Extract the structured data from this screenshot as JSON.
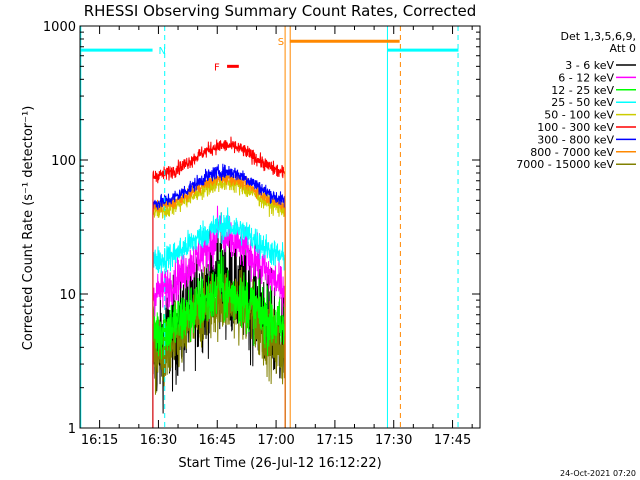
{
  "chart_data": {
    "type": "line",
    "title": "RHESSI Observing Summary Count Rates, Corrected",
    "xlabel": "Start Time (26-Jul-12 16:12:22)",
    "ylabel": "Corrected Count Rate (s⁻¹ detector⁻¹)",
    "timestamp": "24-Oct-2021 07:20",
    "x_range": [
      "16:10",
      "17:52"
    ],
    "x_ticks": [
      "16:15",
      "16:30",
      "16:45",
      "17:00",
      "17:15",
      "17:30",
      "17:45"
    ],
    "x_tick_minutes": [
      975,
      990,
      1005,
      1020,
      1035,
      1050,
      1065
    ],
    "minor_tick_minutes": [
      980,
      985,
      995,
      1000,
      1010,
      1015,
      1025,
      1030,
      1040,
      1045,
      1055,
      1060,
      1070
    ],
    "x_min_minutes": 970,
    "x_max_minutes": 1072,
    "y_scale": "log",
    "ylim": [
      1,
      1000
    ],
    "y_ticks": [
      "1",
      "10",
      "100",
      "1000"
    ],
    "y_tick_values": [
      1,
      10,
      100,
      1000
    ],
    "legend": {
      "placement": "top-right",
      "header": [
        "Det 1,3,5,6,9,",
        "Att 0"
      ]
    },
    "data_window_minutes": [
      988.6,
      1022.3
    ],
    "series": [
      {
        "name": "3 - 6 keV",
        "color": "#000000",
        "start": 3.5,
        "peak": 12,
        "noise": 0.45
      },
      {
        "name": "6 - 12 keV",
        "color": "#ff00ff",
        "start": 9.5,
        "peak": 25,
        "noise": 0.18
      },
      {
        "name": "12 - 25 keV",
        "color": "#00ff00",
        "start": 5,
        "peak": 10,
        "noise": 0.25
      },
      {
        "name": "25 - 50 keV",
        "color": "#00ffff",
        "start": 17,
        "peak": 32,
        "noise": 0.12
      },
      {
        "name": "50 - 100 keV",
        "color": "#cccc00",
        "start": 40,
        "peak": 68,
        "noise": 0.08
      },
      {
        "name": "100 - 300 keV",
        "color": "#ff0000",
        "start": 74,
        "peak": 128,
        "noise": 0.06
      },
      {
        "name": "300 - 800 keV",
        "color": "#0000ff",
        "start": 46,
        "peak": 82,
        "noise": 0.06
      },
      {
        "name": "800 - 7000 keV",
        "color": "#ff8800",
        "start": 43,
        "peak": 73,
        "noise": 0.05
      },
      {
        "name": "7000 - 15000 keV",
        "color": "#808000",
        "start": 3,
        "peak": 9,
        "noise": 0.3
      }
    ],
    "annotations": {
      "night": {
        "label": "N",
        "color": "#00ffff",
        "intervals": [
          [
            970,
            988.5
          ],
          [
            1048.5,
            1066.5
          ]
        ],
        "level": 660
      },
      "saa": {
        "label": "S",
        "color": "#ff8800",
        "intervals": [
          [
            1023.5,
            1051.5
          ]
        ],
        "level": 770
      },
      "flare": {
        "label": "F",
        "color": "#ff0000",
        "intervals": [
          [
            1007.5,
            1010.5
          ]
        ],
        "level": 500
      },
      "flag_lines": [
        {
          "minute": 970.2,
          "color": "#00ffff",
          "style": "solid"
        },
        {
          "minute": 991.6,
          "color": "#00ffff",
          "style": "dashed"
        },
        {
          "minute": 1022.3,
          "color": "#ff8800",
          "style": "solid"
        },
        {
          "minute": 1023.6,
          "color": "#ff8800",
          "style": "solid"
        },
        {
          "minute": 1048.4,
          "color": "#00ffff",
          "style": "solid"
        },
        {
          "minute": 1051.7,
          "color": "#ff8800",
          "style": "dashed"
        },
        {
          "minute": 1066.4,
          "color": "#00ffff",
          "style": "dashed"
        }
      ]
    }
  }
}
